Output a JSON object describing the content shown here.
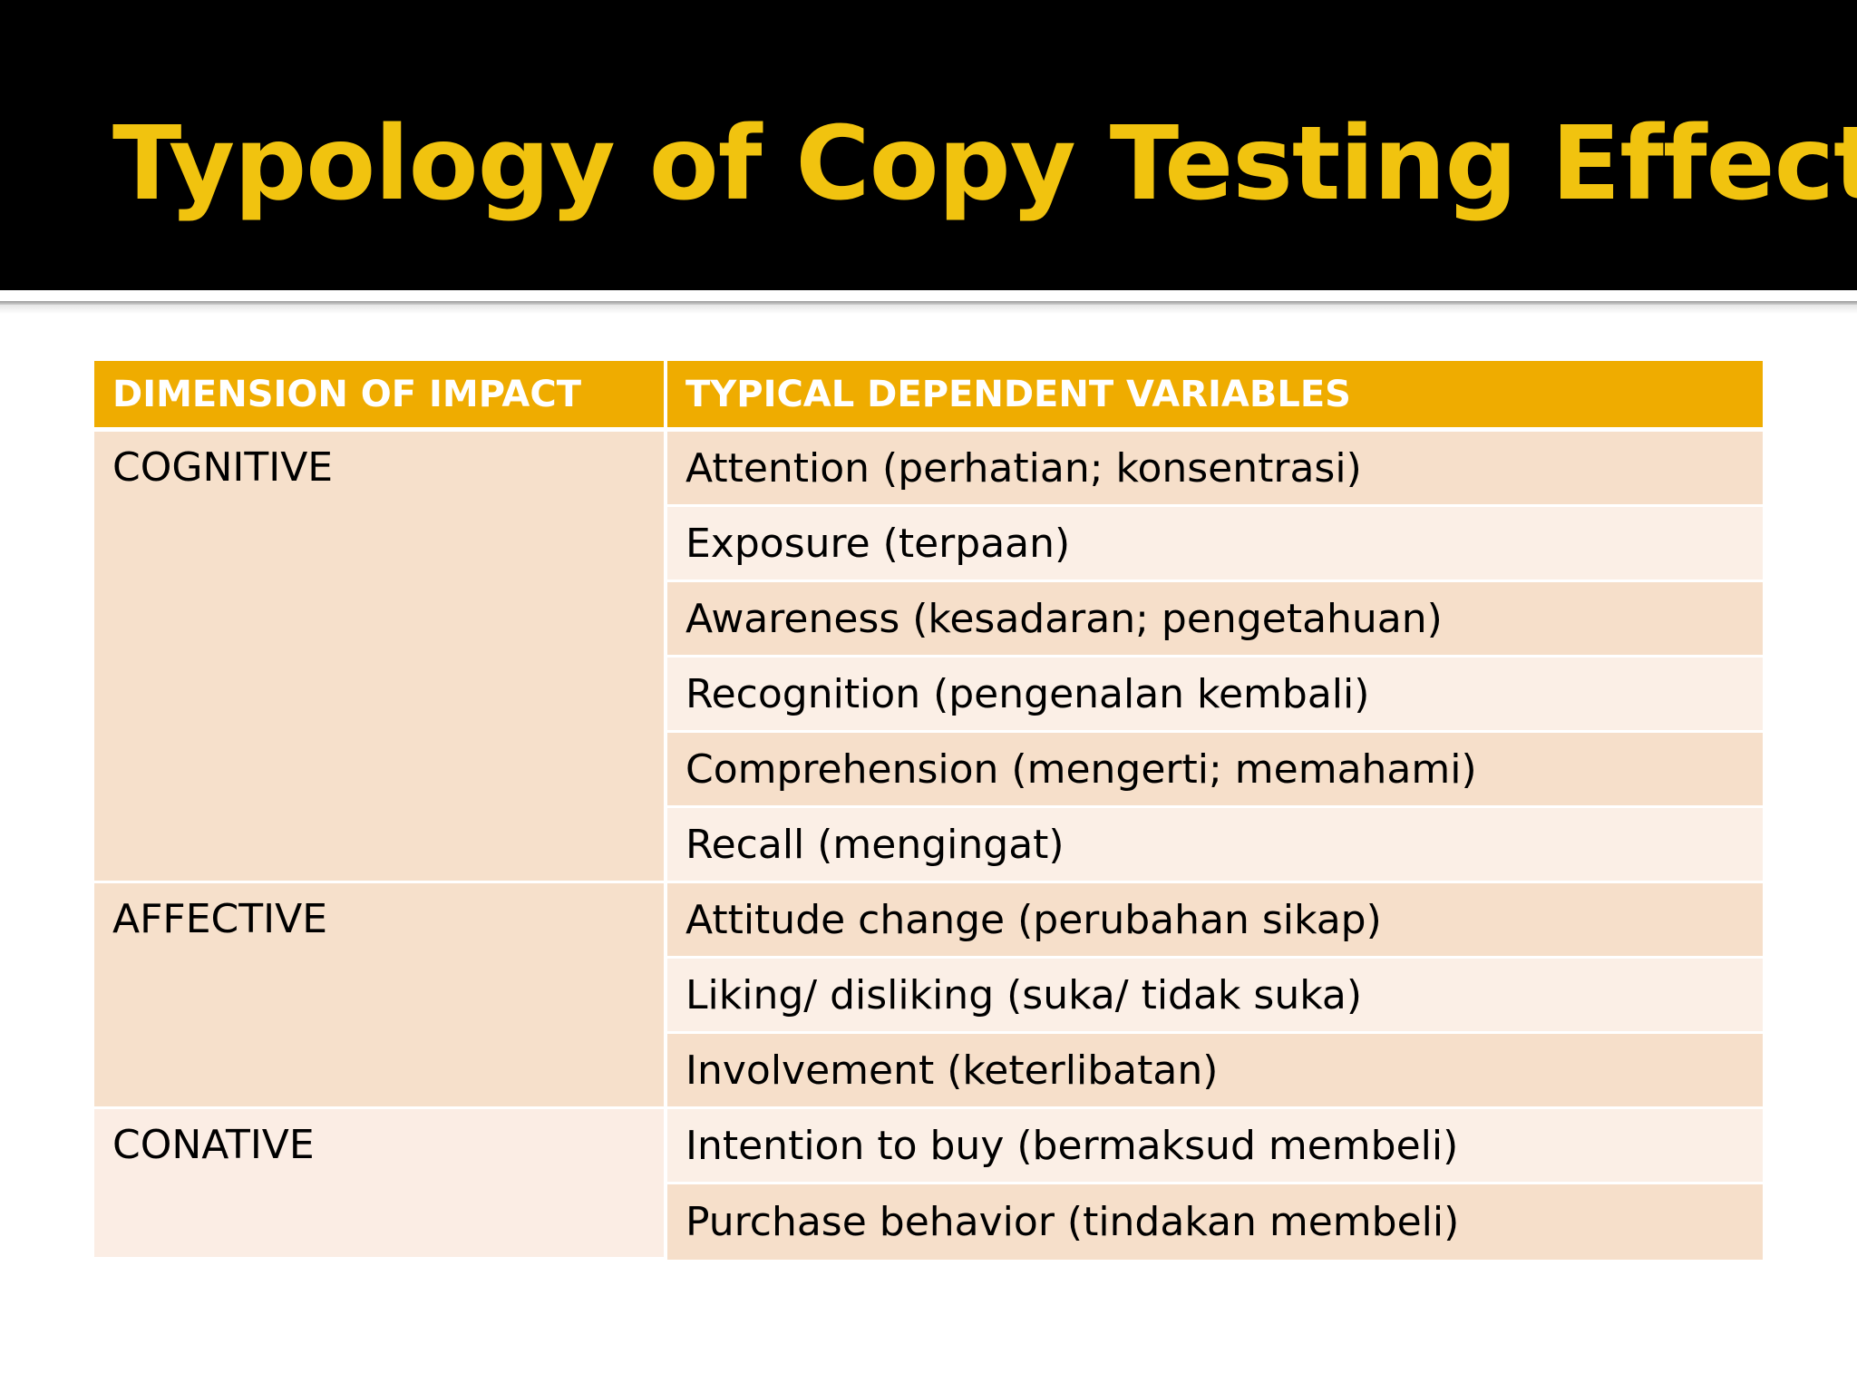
{
  "slide": {
    "title": "Typology of Copy Testing Effects"
  },
  "table": {
    "headers": [
      "DIMENSION OF IMPACT",
      "TYPICAL DEPENDENT  VARIABLES"
    ],
    "groups": [
      {
        "dimension": "COGNITIVE",
        "variables": [
          "Attention (perhatian; konsentrasi)",
          "Exposure  (terpaan)",
          "Awareness (kesadaran; pengetahuan)",
          "Recognition (pengenalan kembali)",
          "Comprehension  (mengerti; memahami)",
          "Recall  (mengingat)"
        ]
      },
      {
        "dimension": "AFFECTIVE",
        "variables": [
          "Attitude change (perubahan sikap)",
          "Liking/ disliking (suka/ tidak suka)",
          "Involvement  (keterlibatan)"
        ]
      },
      {
        "dimension": "CONATIVE",
        "variables": [
          "Intention to buy (bermaksud membeli)",
          "Purchase behavior (tindakan membeli)"
        ]
      }
    ]
  },
  "colors": {
    "title_bar": "#000000",
    "title_text": "#f1c30f",
    "header_fill": "#efac00",
    "row_dark": "#f6dfca",
    "row_light": "#fbefe6"
  }
}
